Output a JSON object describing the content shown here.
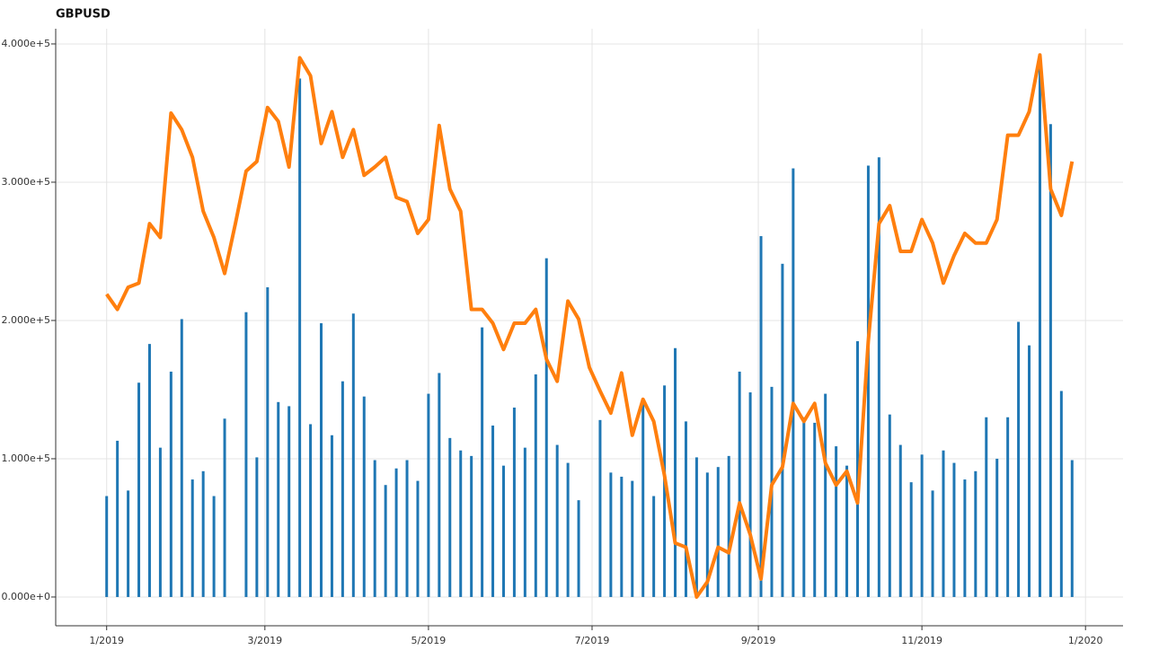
{
  "chart_data": {
    "type": "combo",
    "title": "GBPUSD",
    "x": [
      0,
      4,
      8,
      12,
      16,
      20,
      24,
      28,
      32,
      36,
      40,
      44,
      48,
      52,
      56,
      60,
      64,
      68,
      72,
      76,
      80,
      84,
      88,
      92,
      96,
      100,
      104,
      108,
      112,
      116,
      120,
      124,
      128,
      132,
      136,
      140,
      144,
      148,
      152,
      156,
      160,
      164,
      168,
      172,
      176,
      180,
      184,
      188,
      192,
      196,
      200,
      204,
      208,
      212,
      216,
      220,
      224,
      228,
      232,
      236,
      240,
      244,
      248,
      252,
      256,
      260,
      264,
      268,
      272,
      276,
      280,
      284,
      288,
      292,
      296,
      300,
      304,
      308,
      312,
      316,
      320,
      324,
      328,
      332,
      336,
      340,
      344,
      348,
      352,
      356,
      360
    ],
    "series": [
      {
        "type": "bar",
        "color": "#1f77b4",
        "values": [
          73000,
          113000,
          77000,
          155000,
          183000,
          108000,
          163000,
          201000,
          85000,
          91000,
          73000,
          129000,
          0,
          206000,
          101000,
          224000,
          141000,
          138000,
          375000,
          125000,
          198000,
          117000,
          156000,
          205000,
          145000,
          99000,
          81000,
          93000,
          99000,
          84000,
          147000,
          162000,
          115000,
          106000,
          102000,
          195000,
          124000,
          95000,
          137000,
          108000,
          161000,
          245000,
          110000,
          97000,
          70000,
          0,
          128000,
          90000,
          87000,
          84000,
          143000,
          73000,
          153000,
          180000,
          127000,
          101000,
          90000,
          94000,
          102000,
          163000,
          148000,
          261000,
          152000,
          241000,
          310000,
          130000,
          126000,
          147000,
          109000,
          95000,
          185000,
          312000,
          318000,
          132000,
          110000,
          83000,
          103000,
          77000,
          106000,
          97000,
          85000,
          91000,
          130000,
          100000,
          130000,
          199000,
          182000,
          393000,
          342000,
          149000,
          99000
        ]
      },
      {
        "type": "line",
        "color": "#ff7f0e",
        "values": [
          219000,
          208000,
          224000,
          227000,
          270000,
          260000,
          350000,
          338000,
          318000,
          279000,
          260000,
          234000,
          270000,
          308000,
          315000,
          354000,
          344000,
          311000,
          390000,
          377000,
          328000,
          351000,
          318000,
          338000,
          305000,
          311000,
          318000,
          289000,
          286000,
          263000,
          273000,
          341000,
          295000,
          279000,
          208000,
          208000,
          198000,
          179000,
          198000,
          198000,
          208000,
          172000,
          156000,
          214000,
          201000,
          166000,
          149000,
          133000,
          162000,
          117000,
          143000,
          127000,
          88000,
          39000,
          36000,
          0,
          11000,
          36000,
          32000,
          68000,
          45000,
          13000,
          81000,
          94000,
          140000,
          127000,
          140000,
          97000,
          81000,
          91000,
          68000,
          185000,
          270000,
          283000,
          250000,
          250000,
          273000,
          256000,
          227000,
          247000,
          263000,
          256000,
          256000,
          273000,
          334000,
          334000,
          351000,
          392000,
          295000,
          276000,
          315000
        ]
      }
    ],
    "xlim": [
      -19,
      379
    ],
    "xticks": [
      {
        "value": 0,
        "label": "1/2019"
      },
      {
        "value": 59,
        "label": "3/2019"
      },
      {
        "value": 120,
        "label": "5/2019"
      },
      {
        "value": 181,
        "label": "7/2019"
      },
      {
        "value": 243,
        "label": "9/2019"
      },
      {
        "value": 304,
        "label": "11/2019"
      },
      {
        "value": 365,
        "label": "1/2020"
      }
    ],
    "ylim": [
      -20800,
      411000
    ],
    "yticks": [
      {
        "value": 0,
        "label": "0.000e+0"
      },
      {
        "value": 100000,
        "label": "1.000e+5"
      },
      {
        "value": 200000,
        "label": "2.000e+5"
      },
      {
        "value": 300000,
        "label": "3.000e+5"
      },
      {
        "value": 400000,
        "label": "4.000e+5"
      }
    ],
    "grid": true
  }
}
